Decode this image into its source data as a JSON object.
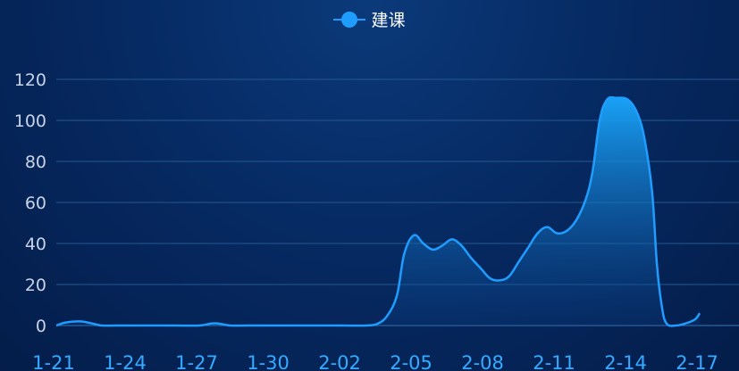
{
  "chart_data": {
    "type": "area",
    "series": [
      {
        "name": "建课",
        "color": "#1f9dff"
      }
    ],
    "x_tick_labels": [
      "1-21",
      "1-24",
      "1-27",
      "1-30",
      "2-02",
      "2-05",
      "2-08",
      "2-11",
      "2-14",
      "2-17"
    ],
    "y_tick_labels": [
      "0",
      "20",
      "40",
      "60",
      "80",
      "100",
      "120"
    ],
    "ylim": [
      0,
      120
    ],
    "grid": true,
    "legend_position": "top-center",
    "points": [
      [
        0,
        0
      ],
      [
        0.4,
        1.5
      ],
      [
        1,
        2
      ],
      [
        1.5,
        1
      ],
      [
        1.9,
        0
      ],
      [
        2.5,
        0
      ],
      [
        3,
        0
      ],
      [
        4,
        0
      ],
      [
        5,
        0
      ],
      [
        6,
        0
      ],
      [
        6.5,
        1
      ],
      [
        6.8,
        1
      ],
      [
        7.3,
        0
      ],
      [
        8,
        0
      ],
      [
        9,
        0
      ],
      [
        10,
        0
      ],
      [
        11,
        0
      ],
      [
        12,
        0
      ],
      [
        13,
        0
      ],
      [
        13.5,
        1
      ],
      [
        13.9,
        5
      ],
      [
        14.3,
        15
      ],
      [
        14.6,
        35
      ],
      [
        15,
        44
      ],
      [
        15.4,
        40
      ],
      [
        15.8,
        37
      ],
      [
        16.2,
        39
      ],
      [
        16.6,
        42
      ],
      [
        17,
        39
      ],
      [
        17.4,
        33
      ],
      [
        17.8,
        28
      ],
      [
        18.2,
        23
      ],
      [
        18.6,
        22
      ],
      [
        19,
        24
      ],
      [
        19.4,
        31
      ],
      [
        19.8,
        38
      ],
      [
        20.2,
        45
      ],
      [
        20.6,
        48
      ],
      [
        21,
        45
      ],
      [
        21.4,
        46
      ],
      [
        21.8,
        51
      ],
      [
        22.2,
        61
      ],
      [
        22.5,
        75
      ],
      [
        22.8,
        100
      ],
      [
        23.1,
        110
      ],
      [
        23.5,
        111
      ],
      [
        24,
        110
      ],
      [
        24.4,
        103
      ],
      [
        24.7,
        90
      ],
      [
        25,
        65
      ],
      [
        25.2,
        30
      ],
      [
        25.4,
        10
      ],
      [
        25.6,
        1
      ],
      [
        26,
        0
      ],
      [
        26.4,
        1
      ],
      [
        26.8,
        3
      ],
      [
        27,
        6
      ]
    ]
  }
}
